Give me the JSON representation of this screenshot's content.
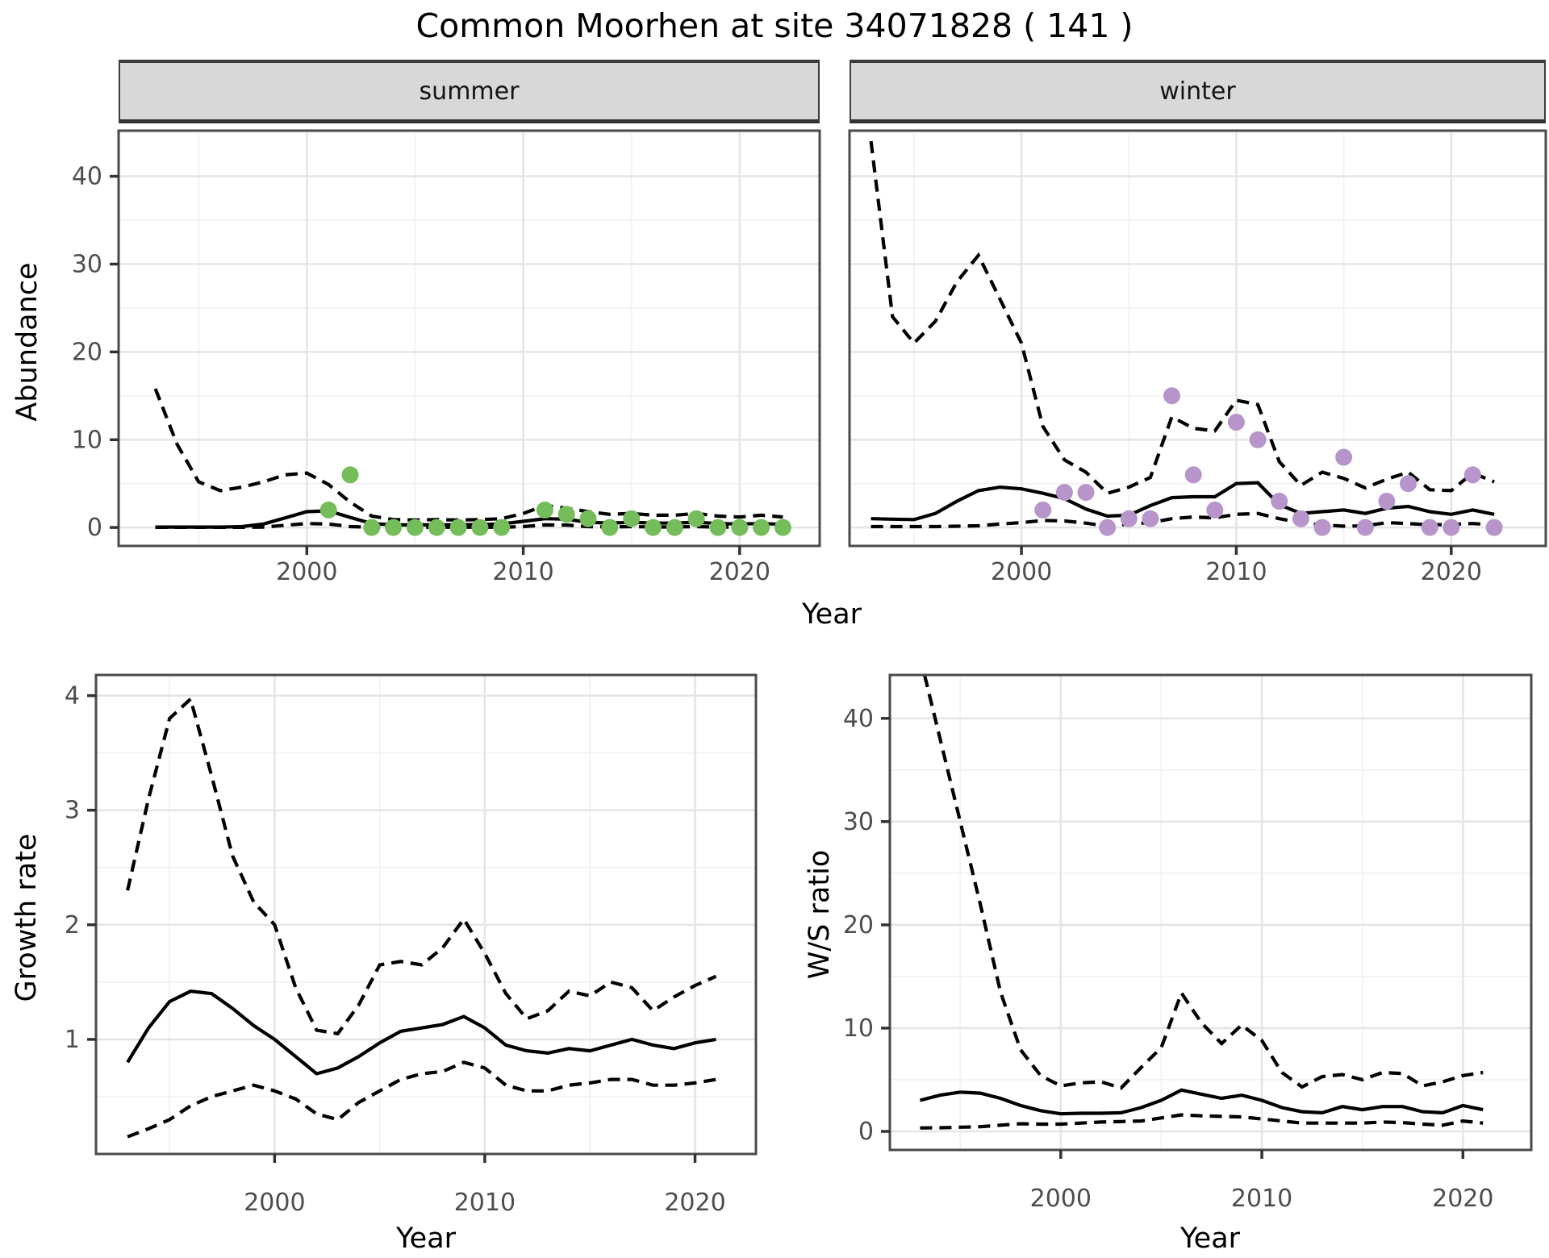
{
  "title": "Common Moorhen at site 34071828 ( 141 )",
  "facets": {
    "summer_label": "summer",
    "winter_label": "winter"
  },
  "axis_titles": {
    "abundance": "Abundance",
    "growth": "Growth rate",
    "ws": "W/S ratio",
    "year_top": "Year",
    "year_growth": "Year",
    "year_ws": "Year"
  },
  "colors": {
    "summer_point": "#74bd5a",
    "winter_point": "#b794ca",
    "line": "#000000",
    "strip_bg": "#d8d8d8",
    "panel_border": "#4a4a4a",
    "grid_major": "#e5e5e5",
    "grid_minor": "#f2f2f2",
    "tick_text": "#4d4d4d"
  },
  "chart_data": {
    "type": "line",
    "note": "Four panels: observed counts (points), model fit (solid line), 95% CI (dashed lines)",
    "panels": [
      {
        "key": "summer",
        "facet": "summer",
        "ylabel": "Abundance",
        "xlabel": "Year",
        "xlim": [
          1991.3,
          2023.7
        ],
        "ylim": [
          -2.1,
          45.2
        ],
        "x_ticks": [
          2000,
          2010,
          2020
        ],
        "x_minor": [
          1995,
          2005,
          2015
        ],
        "y_ticks": [
          0,
          10,
          20,
          30,
          40
        ],
        "y_minor": [
          5,
          15,
          25,
          35,
          45
        ],
        "show_y_tick_labels": true,
        "years": [
          1993,
          1994,
          1995,
          1996,
          1997,
          1998,
          1999,
          2000,
          2001,
          2002,
          2003,
          2004,
          2005,
          2006,
          2007,
          2008,
          2009,
          2010,
          2011,
          2012,
          2013,
          2014,
          2015,
          2016,
          2017,
          2018,
          2019,
          2020,
          2021,
          2022
        ],
        "fit": [
          0.05,
          0.05,
          0.05,
          0.05,
          0.1,
          0.4,
          1.1,
          1.8,
          1.9,
          1.15,
          0.45,
          0.3,
          0.3,
          0.3,
          0.3,
          0.35,
          0.4,
          0.7,
          1.0,
          0.95,
          0.6,
          0.5,
          0.6,
          0.5,
          0.5,
          0.6,
          0.45,
          0.4,
          0.45,
          0.35
        ],
        "upper": [
          15.8,
          9.5,
          5.2,
          4.2,
          4.6,
          5.2,
          6.0,
          6.2,
          4.9,
          2.9,
          1.3,
          0.9,
          0.85,
          0.9,
          0.85,
          0.9,
          1.0,
          1.6,
          2.5,
          2.2,
          1.8,
          1.5,
          1.6,
          1.4,
          1.4,
          1.6,
          1.3,
          1.2,
          1.4,
          1.2
        ],
        "lower": [
          0.02,
          0.02,
          0.02,
          0.02,
          0.02,
          0.05,
          0.25,
          0.45,
          0.4,
          0.1,
          0.03,
          0.03,
          0.03,
          0.03,
          0.03,
          0.03,
          0.03,
          0.1,
          0.3,
          0.28,
          0.1,
          0.06,
          0.1,
          0.06,
          0.06,
          0.1,
          0.05,
          0.05,
          0.06,
          0.04
        ],
        "points_years": [
          2001,
          2002,
          2003,
          2004,
          2005,
          2006,
          2007,
          2008,
          2009,
          2011,
          2012,
          2013,
          2014,
          2015,
          2016,
          2017,
          2018,
          2019,
          2020,
          2021,
          2022
        ],
        "points_values": [
          2,
          6,
          0,
          0,
          0,
          0,
          0,
          0,
          0,
          2,
          1.5,
          1,
          0,
          1,
          0,
          0,
          1,
          0,
          0,
          0,
          0
        ],
        "point_color": "#74bd5a"
      },
      {
        "key": "winter",
        "facet": "winter",
        "ylabel": "Abundance",
        "xlabel": "Year",
        "xlim": [
          1992.0,
          2024.4
        ],
        "ylim": [
          -2.1,
          45.2
        ],
        "x_ticks": [
          2000,
          2010,
          2020
        ],
        "x_minor": [
          1995,
          2005,
          2015
        ],
        "y_ticks": [
          0,
          10,
          20,
          30,
          40
        ],
        "y_minor": [
          5,
          15,
          25,
          35,
          45
        ],
        "show_y_tick_labels": false,
        "years": [
          1993,
          1994,
          1995,
          1996,
          1997,
          1998,
          1999,
          2000,
          2001,
          2002,
          2003,
          2004,
          2005,
          2006,
          2007,
          2008,
          2009,
          2010,
          2011,
          2012,
          2013,
          2014,
          2015,
          2016,
          2017,
          2018,
          2019,
          2020,
          2021,
          2022
        ],
        "fit": [
          1.0,
          0.95,
          0.9,
          1.6,
          3.0,
          4.2,
          4.6,
          4.4,
          3.9,
          3.3,
          2.1,
          1.3,
          1.4,
          2.5,
          3.4,
          3.5,
          3.5,
          5.0,
          5.1,
          2.6,
          1.6,
          1.8,
          2.0,
          1.6,
          2.2,
          2.4,
          1.8,
          1.5,
          2.0,
          1.5
        ],
        "upper": [
          44,
          24,
          21,
          23.5,
          28,
          31,
          26,
          21,
          11.5,
          7.7,
          6.3,
          3.9,
          4.6,
          5.7,
          12.6,
          11.3,
          11.0,
          14.5,
          14.0,
          7.5,
          4.8,
          6.3,
          5.6,
          4.5,
          5.5,
          6.3,
          4.3,
          4.2,
          6.2,
          5.2
        ],
        "lower": [
          0.1,
          0.1,
          0.1,
          0.1,
          0.15,
          0.2,
          0.4,
          0.55,
          0.8,
          0.75,
          0.5,
          0.15,
          0.4,
          0.55,
          1.0,
          1.2,
          1.1,
          1.5,
          1.6,
          1.0,
          0.55,
          0.3,
          0.15,
          0.2,
          0.55,
          0.45,
          0.3,
          0.35,
          0.45,
          0.3
        ],
        "points_years": [
          2001,
          2002,
          2003,
          2004,
          2005,
          2006,
          2007,
          2008,
          2009,
          2010,
          2011,
          2012,
          2013,
          2014,
          2015,
          2016,
          2017,
          2018,
          2019,
          2020,
          2021,
          2022
        ],
        "points_values": [
          2,
          4,
          4,
          0,
          1,
          1,
          15,
          6,
          2,
          12,
          10,
          3,
          1,
          0,
          8,
          0,
          3,
          5,
          0,
          0,
          6,
          0
        ],
        "point_color": "#b794ca"
      },
      {
        "key": "growth",
        "facet": null,
        "ylabel": "Growth rate",
        "xlabel": "Year",
        "xlim": [
          1991.5,
          2022.9
        ],
        "ylim": [
          0.0,
          4.18
        ],
        "x_ticks": [
          2000,
          2010,
          2020
        ],
        "x_minor": [
          1995,
          2005,
          2015
        ],
        "y_ticks": [
          1,
          2,
          3,
          4
        ],
        "y_minor": [
          0.5,
          1.5,
          2.5,
          3.5
        ],
        "show_y_tick_labels": true,
        "years": [
          1993,
          1994,
          1995,
          1996,
          1997,
          1998,
          1999,
          2000,
          2001,
          2002,
          2003,
          2004,
          2005,
          2006,
          2007,
          2008,
          2009,
          2010,
          2011,
          2012,
          2013,
          2014,
          2015,
          2016,
          2017,
          2018,
          2019,
          2020,
          2021
        ],
        "fit": [
          0.8,
          1.1,
          1.33,
          1.42,
          1.4,
          1.27,
          1.12,
          1.0,
          0.85,
          0.7,
          0.75,
          0.85,
          0.97,
          1.07,
          1.1,
          1.13,
          1.2,
          1.1,
          0.95,
          0.9,
          0.88,
          0.92,
          0.9,
          0.95,
          1.0,
          0.95,
          0.92,
          0.97,
          1.0
        ],
        "upper": [
          2.3,
          3.1,
          3.8,
          3.97,
          3.3,
          2.6,
          2.2,
          2.0,
          1.45,
          1.08,
          1.05,
          1.3,
          1.65,
          1.68,
          1.65,
          1.8,
          2.05,
          1.75,
          1.4,
          1.18,
          1.25,
          1.42,
          1.38,
          1.5,
          1.45,
          1.25,
          1.37,
          1.47,
          1.55
        ],
        "lower": [
          0.15,
          0.22,
          0.3,
          0.42,
          0.5,
          0.55,
          0.6,
          0.55,
          0.48,
          0.35,
          0.3,
          0.45,
          0.55,
          0.65,
          0.7,
          0.72,
          0.8,
          0.75,
          0.6,
          0.55,
          0.55,
          0.6,
          0.62,
          0.65,
          0.65,
          0.6,
          0.6,
          0.62,
          0.65
        ],
        "points_years": [],
        "points_values": [],
        "point_color": null
      },
      {
        "key": "ws",
        "facet": null,
        "ylabel": "W/S ratio",
        "xlabel": "Year",
        "xlim": [
          1991.5,
          2023.4
        ],
        "ylim": [
          -1.8,
          44.2
        ],
        "x_ticks": [
          2000,
          2010,
          2020
        ],
        "x_minor": [
          1995,
          2005,
          2015
        ],
        "y_ticks": [
          0,
          10,
          20,
          30,
          40
        ],
        "y_minor": [
          5,
          15,
          25,
          35
        ],
        "show_y_tick_labels": true,
        "years": [
          1993,
          1994,
          1995,
          1996,
          1997,
          1998,
          1999,
          2000,
          2001,
          2002,
          2003,
          2004,
          2005,
          2006,
          2007,
          2008,
          2009,
          2010,
          2011,
          2012,
          2013,
          2014,
          2015,
          2016,
          2017,
          2018,
          2019,
          2020,
          2021
        ],
        "fit": [
          3.0,
          3.5,
          3.8,
          3.7,
          3.2,
          2.5,
          2.0,
          1.7,
          1.75,
          1.75,
          1.8,
          2.3,
          3.0,
          4.0,
          3.6,
          3.2,
          3.5,
          3.0,
          2.3,
          1.9,
          1.8,
          2.4,
          2.1,
          2.4,
          2.4,
          1.9,
          1.8,
          2.5,
          2.1
        ],
        "upper": [
          46,
          38,
          30,
          22,
          13.5,
          7.9,
          5.4,
          4.4,
          4.7,
          4.8,
          4.2,
          6.2,
          8.1,
          13.4,
          10.5,
          8.5,
          10.3,
          8.8,
          5.7,
          4.3,
          5.3,
          5.5,
          5.0,
          5.7,
          5.6,
          4.4,
          4.8,
          5.4,
          5.7
        ],
        "lower": [
          0.33,
          0.35,
          0.4,
          0.45,
          0.6,
          0.74,
          0.7,
          0.7,
          0.8,
          0.9,
          0.95,
          1.0,
          1.3,
          1.6,
          1.5,
          1.45,
          1.4,
          1.2,
          1.0,
          0.8,
          0.8,
          0.8,
          0.8,
          0.9,
          0.85,
          0.7,
          0.6,
          1.0,
          0.8
        ]
      }
    ]
  }
}
